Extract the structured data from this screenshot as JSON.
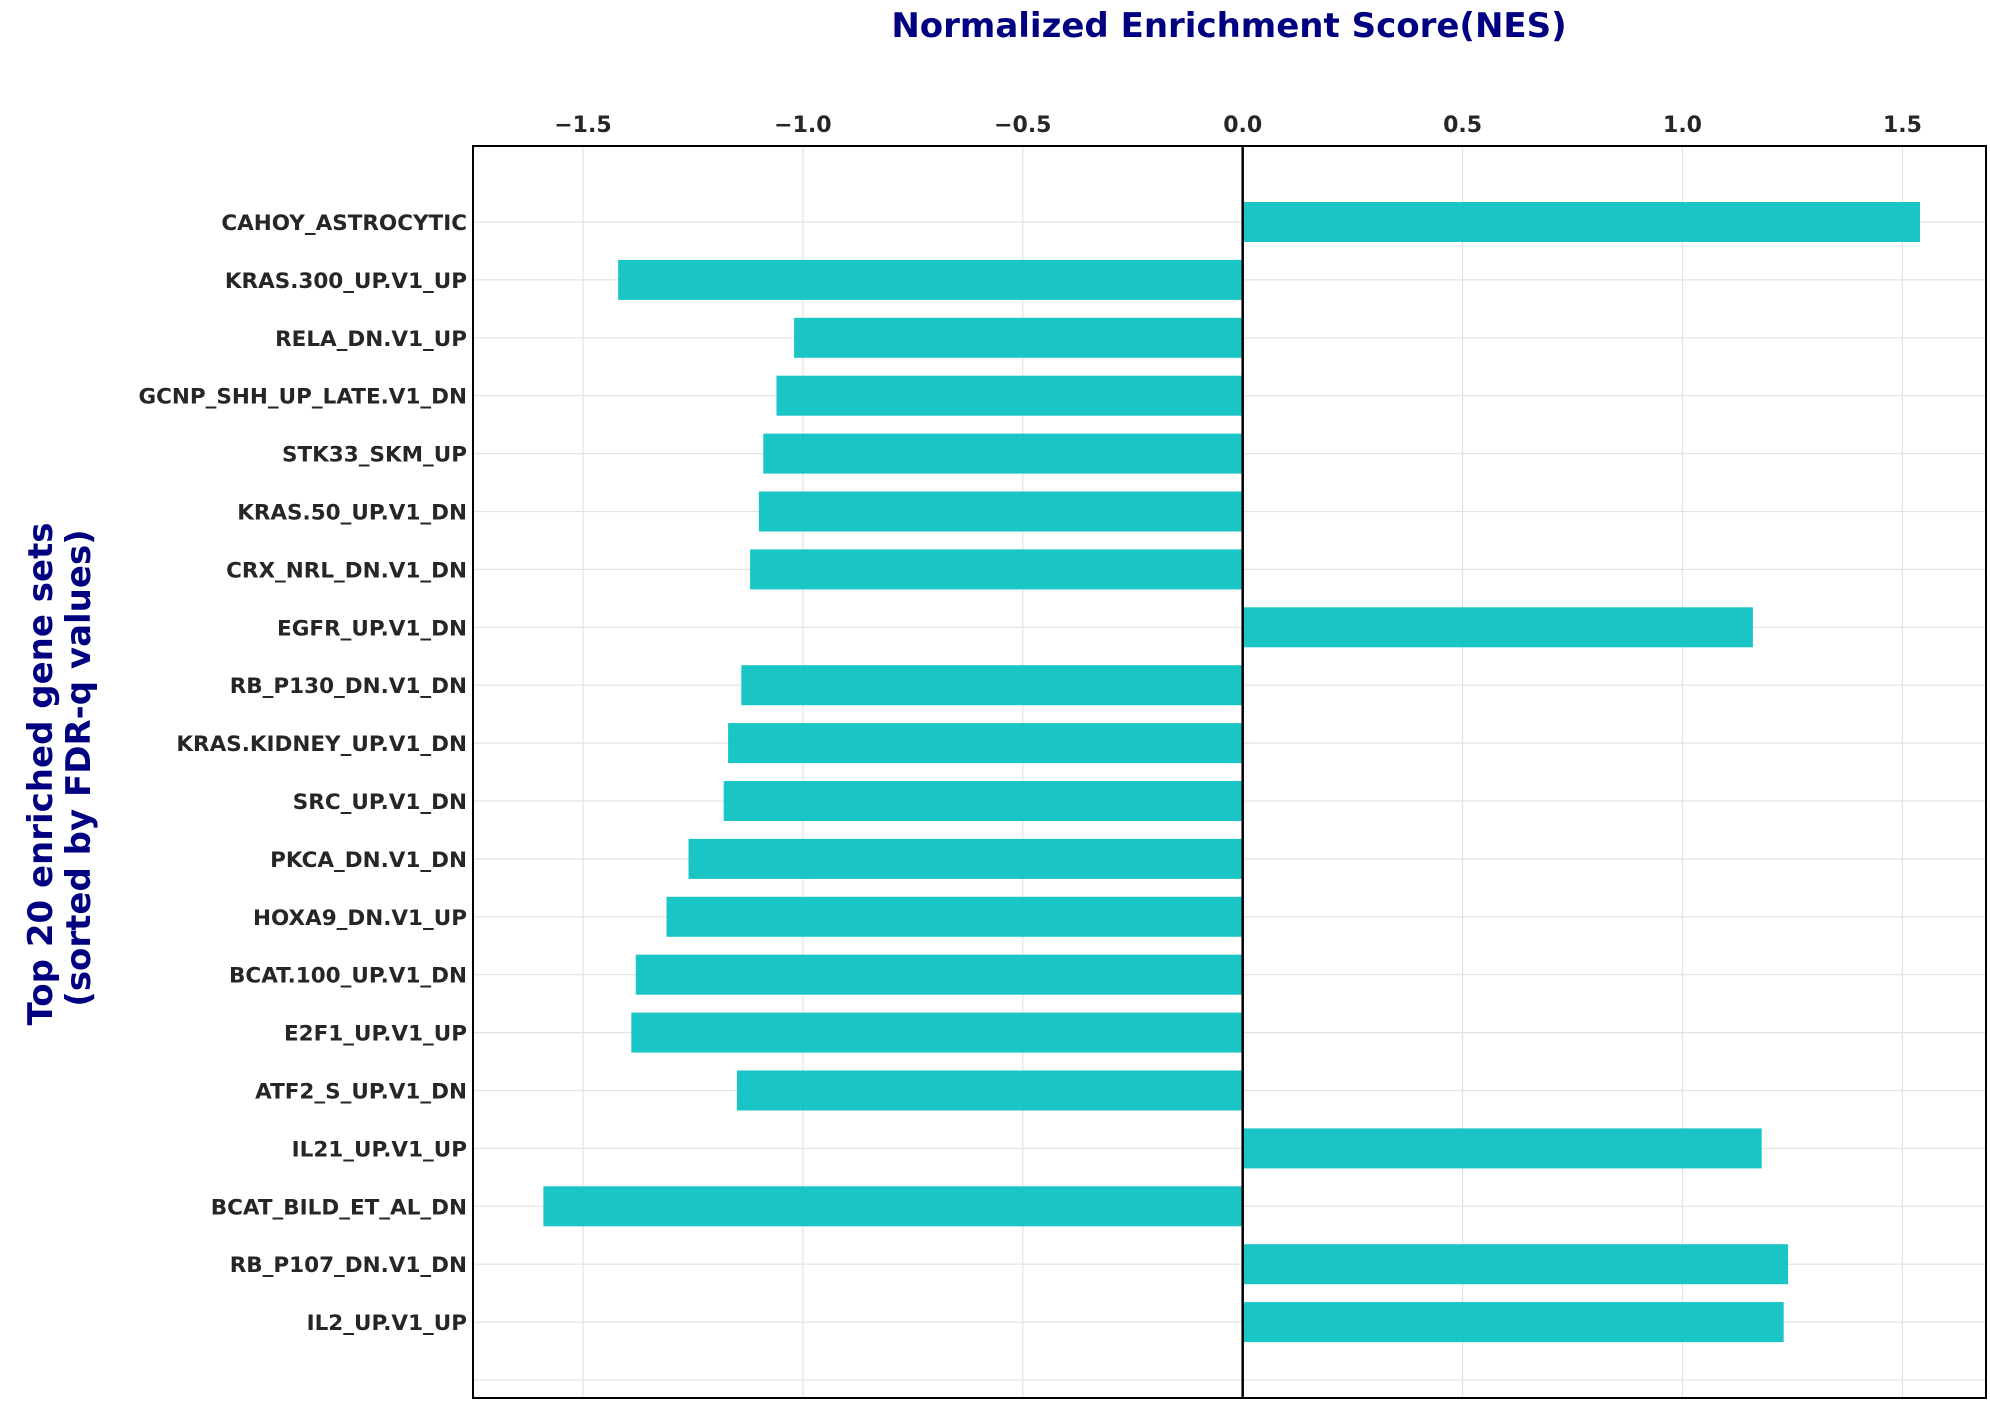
{
  "chart_data": {
    "type": "bar",
    "orientation": "horizontal",
    "title": "Normalized Enrichment Score(NES)",
    "xlabel": "",
    "ylabel_lines": [
      "Top 20 enriched gene sets",
      "(sorted by FDR-q values)"
    ],
    "x_ticks": [
      "−1.5",
      "−1.0",
      "−0.5",
      "0.0",
      "0.5",
      "1.0",
      "1.5"
    ],
    "x_tick_values": [
      -1.5,
      -1.0,
      -0.5,
      0.0,
      0.5,
      1.0,
      1.5
    ],
    "xlim": [
      -1.75,
      1.69
    ],
    "x_axis_position": "top",
    "grid": true,
    "zero_line": true,
    "bar_color": "#00bfbf",
    "title_color": "#000080",
    "tick_color": "#262626",
    "categories": [
      "CAHOY_ASTROCYTIC",
      "KRAS.300_UP.V1_UP",
      "RELA_DN.V1_UP",
      "GCNP_SHH_UP_LATE.V1_DN",
      "STK33_SKM_UP",
      "KRAS.50_UP.V1_DN",
      "CRX_NRL_DN.V1_DN",
      "EGFR_UP.V1_DN",
      "RB_P130_DN.V1_DN",
      "KRAS.KIDNEY_UP.V1_DN",
      "SRC_UP.V1_DN",
      "PKCA_DN.V1_DN",
      "HOXA9_DN.V1_UP",
      "BCAT.100_UP.V1_DN",
      "E2F1_UP.V1_UP",
      "ATF2_S_UP.V1_DN",
      "IL21_UP.V1_UP",
      "BCAT_BILD_ET_AL_DN",
      "RB_P107_DN.V1_DN",
      "IL2_UP.V1_UP"
    ],
    "values": [
      1.54,
      -1.42,
      -1.02,
      -1.06,
      -1.09,
      -1.1,
      -1.12,
      1.16,
      -1.14,
      -1.17,
      -1.18,
      -1.26,
      -1.31,
      -1.38,
      -1.39,
      -1.15,
      1.18,
      -1.59,
      1.24,
      1.23
    ]
  }
}
